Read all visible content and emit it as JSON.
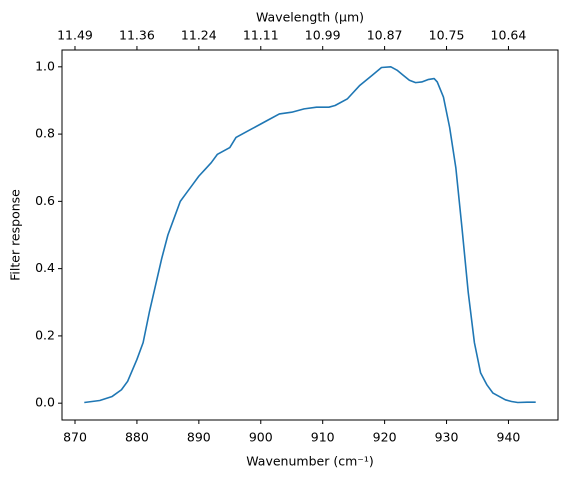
{
  "chart_data": {
    "type": "line",
    "xlabel": "Wavenumber (cm⁻¹)",
    "x2label": "Wavelength (μm)",
    "ylabel": "Filter response",
    "xlim": [
      867.9,
      948.0
    ],
    "ylim": [
      -0.05,
      1.05
    ],
    "xticks": [
      870,
      880,
      890,
      900,
      910,
      920,
      930,
      940
    ],
    "x2ticks": [
      {
        "value": 11.4943,
        "label": "11.49"
      },
      {
        "value": 11.3636,
        "label": "11.36"
      },
      {
        "value": 11.236,
        "label": "11.24"
      },
      {
        "value": 11.1111,
        "label": "11.11"
      },
      {
        "value": 10.989,
        "label": "10.99"
      },
      {
        "value": 10.8696,
        "label": "10.87"
      },
      {
        "value": 10.7527,
        "label": "10.75"
      },
      {
        "value": 10.6383,
        "label": "10.64"
      }
    ],
    "yticks": [
      {
        "value": 0,
        "label": "0.0"
      },
      0.2,
      0.4,
      0.6,
      0.8,
      {
        "value": 1,
        "label": "1.0"
      }
    ],
    "x": [
      871.5,
      874,
      876,
      877.5,
      878.5,
      880,
      881,
      882,
      883,
      884,
      885,
      886,
      887,
      888,
      889,
      890,
      891,
      892,
      893,
      894,
      895,
      896,
      897,
      898,
      900,
      901,
      903,
      905,
      907,
      909,
      911,
      912,
      914,
      916,
      918,
      919.5,
      921,
      922,
      923,
      924,
      925,
      926,
      927,
      928,
      928.5,
      929.5,
      930.5,
      931.5,
      932.5,
      933.5,
      934.5,
      935.5,
      936.5,
      937.5,
      938.5,
      939.5,
      940.5,
      941.5,
      943,
      944.4
    ],
    "series": [
      {
        "color": "#1f77b4",
        "values": [
          0.002,
          0.008,
          0.02,
          0.04,
          0.065,
          0.13,
          0.18,
          0.27,
          0.35,
          0.43,
          0.5,
          0.55,
          0.6,
          0.625,
          0.65,
          0.675,
          0.695,
          0.715,
          0.74,
          0.75,
          0.76,
          0.79,
          0.8,
          0.81,
          0.83,
          0.84,
          0.86,
          0.865,
          0.875,
          0.88,
          0.88,
          0.885,
          0.905,
          0.945,
          0.975,
          0.998,
          1.0,
          0.99,
          0.975,
          0.96,
          0.953,
          0.955,
          0.962,
          0.965,
          0.955,
          0.91,
          0.82,
          0.7,
          0.52,
          0.33,
          0.18,
          0.09,
          0.055,
          0.03,
          0.02,
          0.01,
          0.005,
          0.002,
          0.003,
          0.003
        ]
      }
    ]
  }
}
